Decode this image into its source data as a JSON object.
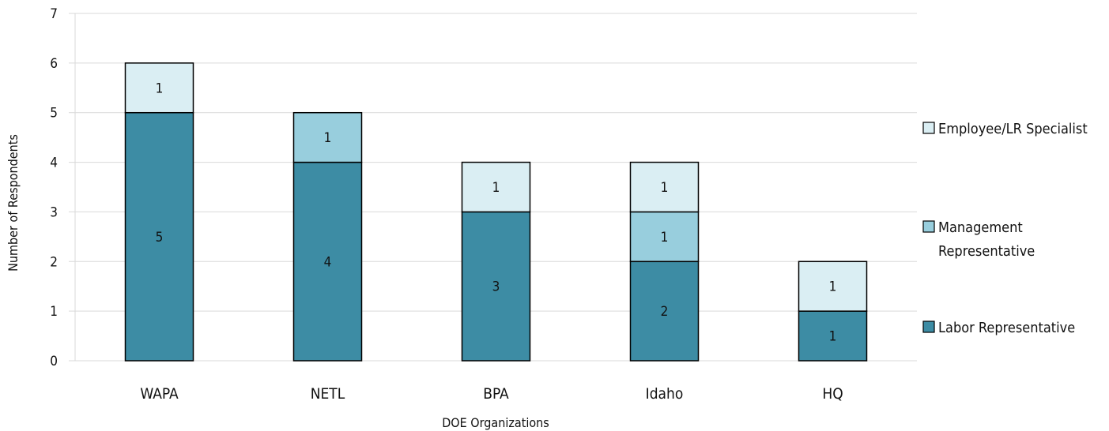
{
  "chart_data": {
    "type": "bar",
    "stacked": true,
    "categories": [
      "WAPA",
      "NETL",
      "BPA",
      "Idaho",
      "HQ"
    ],
    "series": [
      {
        "name": "Labor Representative",
        "color": "#3d8ca4",
        "values": [
          5,
          4,
          3,
          2,
          1
        ]
      },
      {
        "name": "Management Representative",
        "color": "#98cedd",
        "values": [
          0,
          1,
          0,
          1,
          0
        ]
      },
      {
        "name": "Employee/LR Specialist",
        "color": "#daeef3",
        "values": [
          1,
          0,
          1,
          1,
          1
        ]
      }
    ],
    "legend_order": [
      "Employee/LR Specialist",
      "Management Representative",
      "Labor Representative"
    ],
    "legend_lines": {
      "Employee/LR Specialist": [
        "Employee/LR Specialist"
      ],
      "Management Representative": [
        "Management",
        "Representative"
      ],
      "Labor Representative": [
        "Labor Representative"
      ]
    },
    "xlabel": "DOE Organizations",
    "ylabel": "Number of Respondents",
    "ylim": [
      0,
      7
    ],
    "yticks": [
      "0",
      "1",
      "2",
      "3",
      "4",
      "5",
      "6",
      "7"
    ],
    "grid": true,
    "legend_position": "right",
    "gridline_color": "#d9d9d9"
  }
}
